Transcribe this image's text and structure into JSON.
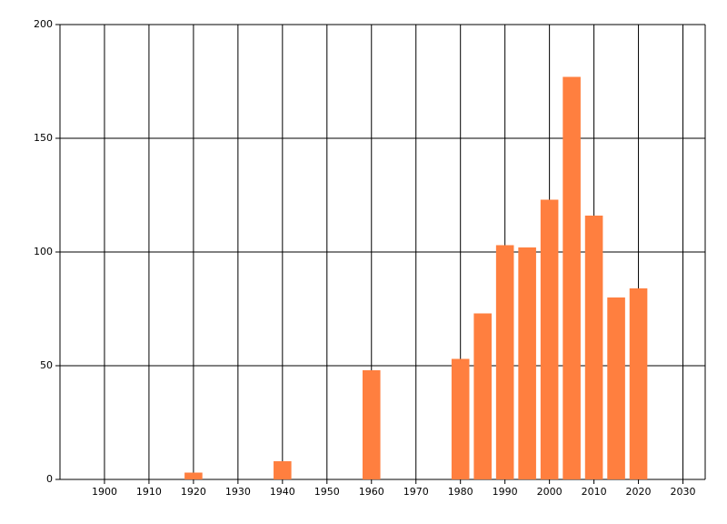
{
  "chart_data": {
    "type": "bar",
    "x": [
      1920,
      1940,
      1960,
      1980,
      1985,
      1990,
      1995,
      2000,
      2005,
      2010,
      2015,
      2020
    ],
    "values": [
      3,
      8,
      48,
      53,
      73,
      103,
      102,
      123,
      177,
      116,
      80,
      84
    ],
    "color": "#ff7f3f",
    "xlim": [
      1890,
      2035
    ],
    "xticks": [
      1900,
      1910,
      1920,
      1930,
      1940,
      1950,
      1960,
      1970,
      1980,
      1990,
      2000,
      2010,
      2020,
      2030
    ],
    "ylim": [
      0,
      200
    ],
    "yticks": [
      0,
      50,
      100,
      150,
      200
    ],
    "grid": true
  }
}
